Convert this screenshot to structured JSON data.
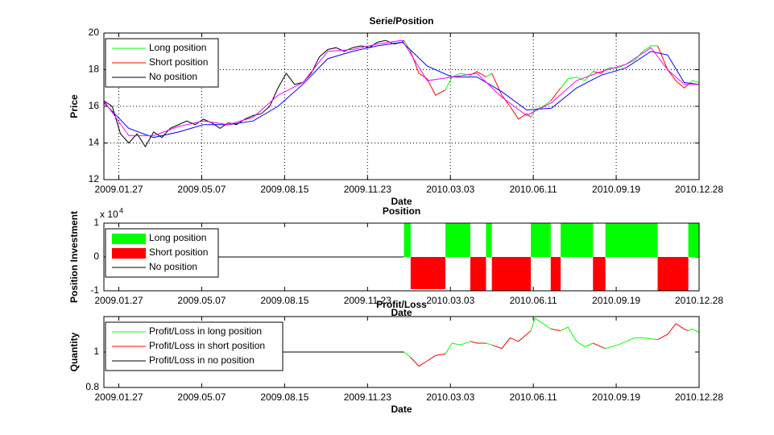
{
  "chart_data": [
    {
      "type": "line",
      "title": "Serie/Position",
      "xlabel": "Date",
      "ylabel": "Price",
      "xlim": [
        "2009.01.09",
        "2010.12.28"
      ],
      "xticks": [
        "2009.01.27",
        "2009.05.07",
        "2009.08.15",
        "2009.11.23",
        "2010.03.03",
        "2010.06.11",
        "2010.09.19",
        "2010.12.28"
      ],
      "ylim": [
        12,
        20
      ],
      "yticks": [
        12,
        14,
        16,
        18,
        20
      ],
      "grid": true,
      "legend": "upper left",
      "series": [
        {
          "name": "Long position",
          "color": "#00ff00",
          "x": [
            "2010.01.06",
            "2010.01.14",
            "2010.02.03",
            "2010.02.25",
            "2010.03.05",
            "2010.03.15",
            "2010.03.27",
            "2010.04.04",
            "2010.04.15",
            "2010.04.22",
            "2010.05.14",
            "2010.06.08",
            "2010.06.13",
            "2010.06.23",
            "2010.07.02",
            "2010.07.08",
            "2010.07.14",
            "2010.07.23",
            "2010.08.02",
            "2010.08.12",
            "2010.08.22",
            "2010.09.01",
            "2010.09.06",
            "2010.09.11",
            "2010.09.21",
            "2010.10.01",
            "2010.10.11",
            "2010.10.21",
            "2010.10.31",
            "2010.11.08",
            "2010.11.30",
            "2010.12.15",
            "2010.12.20",
            "2010.12.28"
          ],
          "values": [
            19.6,
            19.0,
            null,
            16.9,
            17.6,
            17.8,
            17.7,
            null,
            17.6,
            17.8,
            null,
            15.4,
            15.8,
            16.0,
            16.3,
            null,
            17.0,
            17.5,
            17.6,
            17.4,
            17.9,
            null,
            18.0,
            18.1,
            18.1,
            18.3,
            18.5,
            19.0,
            19.3,
            19.3,
            null,
            17.2,
            17.4,
            17.3
          ]
        },
        {
          "name": "Short position",
          "color": "#ff0000",
          "x": [
            "2010.01.14",
            "2010.01.24",
            "2010.02.03",
            "2010.02.13",
            "2010.02.25",
            "2010.03.15",
            "2010.03.27",
            "2010.04.04",
            "2010.04.15",
            "2010.04.18",
            "2010.04.22",
            "2010.05.04",
            "2010.05.14",
            "2010.05.24",
            "2010.06.03",
            "2010.06.08",
            "2010.06.23",
            "2010.07.02",
            "2010.07.14",
            "2010.08.02",
            "2010.08.22",
            "2010.09.01",
            "2010.09.06",
            "2010.10.11",
            "2010.11.08",
            "2010.11.20",
            "2010.11.30",
            "2010.12.10",
            "2010.12.15"
          ],
          "values": [
            19.0,
            17.8,
            17.5,
            16.6,
            16.9,
            null,
            17.7,
            17.9,
            17.6,
            null,
            17.8,
            16.6,
            16.0,
            15.3,
            15.6,
            15.4,
            null,
            16.3,
            17.0,
            null,
            17.9,
            17.8,
            18.0,
            null,
            19.3,
            18.0,
            17.4,
            17.0,
            17.2
          ]
        },
        {
          "name": "No position",
          "color": "#000000",
          "x": [
            "2009.01.09",
            "2009.01.19",
            "2009.01.29",
            "2009.02.08",
            "2009.02.18",
            "2009.02.28",
            "2009.03.10",
            "2009.03.20",
            "2009.03.30",
            "2009.04.09",
            "2009.04.19",
            "2009.04.29",
            "2009.05.09",
            "2009.05.19",
            "2009.05.29",
            "2009.06.08",
            "2009.06.18",
            "2009.06.28",
            "2009.07.08",
            "2009.07.18",
            "2009.07.28",
            "2009.08.07",
            "2009.08.17",
            "2009.08.27",
            "2009.09.06",
            "2009.09.16",
            "2009.09.26",
            "2009.10.06",
            "2009.10.16",
            "2009.10.26",
            "2009.11.05",
            "2009.11.15",
            "2009.11.25",
            "2009.12.05",
            "2009.12.15",
            "2009.12.25",
            "2010.01.04",
            "2010.01.06"
          ],
          "values": [
            16.3,
            16.0,
            14.5,
            14.0,
            14.5,
            13.8,
            14.6,
            14.3,
            14.8,
            15.0,
            15.2,
            15.0,
            15.3,
            15.1,
            14.8,
            15.1,
            15.0,
            15.3,
            15.5,
            15.6,
            16.0,
            17.0,
            17.8,
            17.2,
            17.3,
            17.8,
            18.7,
            19.1,
            19.2,
            19.0,
            19.2,
            19.3,
            19.2,
            19.5,
            19.6,
            19.4,
            19.5,
            19.6
          ]
        },
        {
          "color": "#0000ff",
          "x": [
            "2009.01.09",
            "2009.02.08",
            "2009.03.10",
            "2009.04.09",
            "2009.05.09",
            "2009.06.08",
            "2009.07.08",
            "2009.08.07",
            "2009.09.06",
            "2009.10.06",
            "2009.11.05",
            "2009.12.05",
            "2010.01.04",
            "2010.02.03",
            "2010.03.05",
            "2010.04.04",
            "2010.05.04",
            "2010.06.03",
            "2010.07.03",
            "2010.08.02",
            "2010.09.01",
            "2010.10.01",
            "2010.10.31",
            "2010.11.20",
            "2010.12.10",
            "2010.12.28"
          ],
          "values": [
            16.2,
            14.8,
            14.3,
            14.6,
            15.0,
            15.0,
            15.2,
            16.0,
            17.2,
            18.6,
            19.0,
            19.3,
            19.5,
            18.2,
            17.6,
            17.6,
            16.8,
            15.8,
            15.9,
            17.0,
            17.7,
            18.1,
            19.0,
            18.8,
            17.3,
            17.2
          ]
        },
        {
          "color": "#ff00ff",
          "x": [
            "2009.01.09",
            "2009.02.08",
            "2009.03.10",
            "2009.04.09",
            "2009.05.09",
            "2009.06.08",
            "2009.07.08",
            "2009.08.07",
            "2009.09.06",
            "2009.10.06",
            "2009.11.05",
            "2009.12.05",
            "2010.01.04",
            "2010.02.03",
            "2010.03.05",
            "2010.04.04",
            "2010.05.04",
            "2010.06.03",
            "2010.07.03",
            "2010.08.02",
            "2010.09.01",
            "2010.10.01",
            "2010.10.31",
            "2010.11.20",
            "2010.12.10",
            "2010.12.28"
          ],
          "values": [
            16.3,
            14.4,
            14.4,
            14.9,
            15.2,
            15.0,
            15.4,
            16.6,
            17.3,
            19.0,
            19.1,
            19.4,
            19.6,
            17.4,
            17.6,
            17.8,
            16.5,
            15.5,
            16.2,
            17.4,
            17.9,
            18.3,
            19.2,
            18.0,
            17.2,
            17.2
          ]
        }
      ]
    },
    {
      "type": "interval",
      "title": "Position",
      "xlabel": "Date",
      "ylabel": "Position Investment",
      "yscale_label": "x 10",
      "yscale_exponent": "4",
      "xlim": [
        "2009.01.09",
        "2010.12.28"
      ],
      "xticks": [
        "2009.01.27",
        "2009.05.07",
        "2009.08.15",
        "2009.11.23",
        "2010.03.03",
        "2010.06.11",
        "2010.09.19",
        "2010.12.28"
      ],
      "ylim": [
        -1,
        1
      ],
      "yticks": [
        -1,
        0,
        1
      ],
      "grid": false,
      "legend": "upper left",
      "series": [
        {
          "name": "Long position",
          "color": "#00ff00",
          "intervals": [
            [
              "2010.01.06",
              "2010.01.14"
            ],
            [
              "2010.02.25",
              "2010.03.27"
            ],
            [
              "2010.04.15",
              "2010.04.22"
            ],
            [
              "2010.06.08",
              "2010.07.02"
            ],
            [
              "2010.07.14",
              "2010.08.22"
            ],
            [
              "2010.09.06",
              "2010.11.08"
            ],
            [
              "2010.12.15",
              "2010.12.28"
            ]
          ],
          "values": [
            1,
            1,
            1,
            1,
            1,
            1,
            1
          ]
        },
        {
          "name": "Short position",
          "color": "#ff0000",
          "intervals": [
            [
              "2010.01.14",
              "2010.02.25"
            ],
            [
              "2010.03.27",
              "2010.04.15"
            ],
            [
              "2010.04.22",
              "2010.06.08"
            ],
            [
              "2010.07.02",
              "2010.07.14"
            ],
            [
              "2010.08.22",
              "2010.09.06"
            ],
            [
              "2010.11.08",
              "2010.12.15"
            ]
          ],
          "values": [
            -0.95,
            -1,
            -1,
            -1,
            -1,
            -1
          ]
        },
        {
          "name": "No position",
          "color": "#000000",
          "intervals": [
            [
              "2009.01.09",
              "2010.01.06"
            ]
          ],
          "values": [
            0
          ]
        }
      ]
    },
    {
      "type": "line",
      "title": "Profit/Loss",
      "xlabel": "Date",
      "ylabel": "Quantity",
      "xlim": [
        "2009.01.09",
        "2010.12.28"
      ],
      "xticks": [
        "2009.01.27",
        "2009.05.07",
        "2009.08.15",
        "2009.11.23",
        "2010.03.03",
        "2010.06.11",
        "2010.09.19",
        "2010.12.28"
      ],
      "ylim": [
        0.8,
        1.2
      ],
      "yticks": [
        0.8,
        1
      ],
      "grid": false,
      "legend": "upper left",
      "series": [
        {
          "name": "Profit/Loss in long position",
          "color": "#00ff00",
          "x": [
            "2010.01.06",
            "2010.01.14",
            "2010.02.03",
            "2010.02.25",
            "2010.03.05",
            "2010.03.15",
            "2010.03.27",
            "2010.04.04",
            "2010.04.15",
            "2010.04.22",
            "2010.05.14",
            "2010.06.08",
            "2010.06.13",
            "2010.06.23",
            "2010.07.02",
            "2010.07.08",
            "2010.07.14",
            "2010.07.23",
            "2010.08.02",
            "2010.08.12",
            "2010.08.22",
            "2010.09.01",
            "2010.09.06",
            "2010.09.21",
            "2010.10.01",
            "2010.10.11",
            "2010.10.21",
            "2010.11.08",
            "2010.11.30",
            "2010.12.15",
            "2010.12.20",
            "2010.12.28"
          ],
          "values": [
            1.0,
            0.97,
            null,
            0.99,
            1.05,
            1.04,
            1.06,
            null,
            1.05,
            1.04,
            null,
            1.12,
            1.19,
            1.16,
            1.13,
            null,
            1.12,
            1.14,
            1.06,
            1.03,
            1.05,
            null,
            1.02,
            1.04,
            1.06,
            1.08,
            1.08,
            1.07,
            null,
            1.12,
            1.13,
            1.11
          ]
        },
        {
          "name": "Profit/Loss in short position",
          "color": "#ff0000",
          "x": [
            "2010.01.14",
            "2010.01.24",
            "2010.02.03",
            "2010.02.13",
            "2010.02.25",
            "2010.03.15",
            "2010.03.27",
            "2010.04.04",
            "2010.04.15",
            "2010.04.18",
            "2010.04.22",
            "2010.05.04",
            "2010.05.14",
            "2010.05.24",
            "2010.06.03",
            "2010.06.08",
            "2010.06.23",
            "2010.07.02",
            "2010.07.14",
            "2010.08.02",
            "2010.08.22",
            "2010.09.01",
            "2010.09.06",
            "2010.10.11",
            "2010.11.08",
            "2010.11.20",
            "2010.11.30",
            "2010.12.10",
            "2010.12.15"
          ],
          "values": [
            0.97,
            0.92,
            0.95,
            0.98,
            0.99,
            null,
            1.06,
            1.05,
            1.05,
            null,
            1.04,
            1.02,
            1.08,
            1.06,
            1.1,
            1.12,
            null,
            1.13,
            1.12,
            null,
            1.05,
            1.03,
            1.02,
            null,
            1.07,
            1.1,
            1.16,
            1.13,
            1.12
          ]
        },
        {
          "name": "Profit/Loss in no position",
          "color": "#000000",
          "x": [
            "2009.01.09",
            "2010.01.06"
          ],
          "values": [
            1,
            1
          ]
        }
      ]
    }
  ]
}
